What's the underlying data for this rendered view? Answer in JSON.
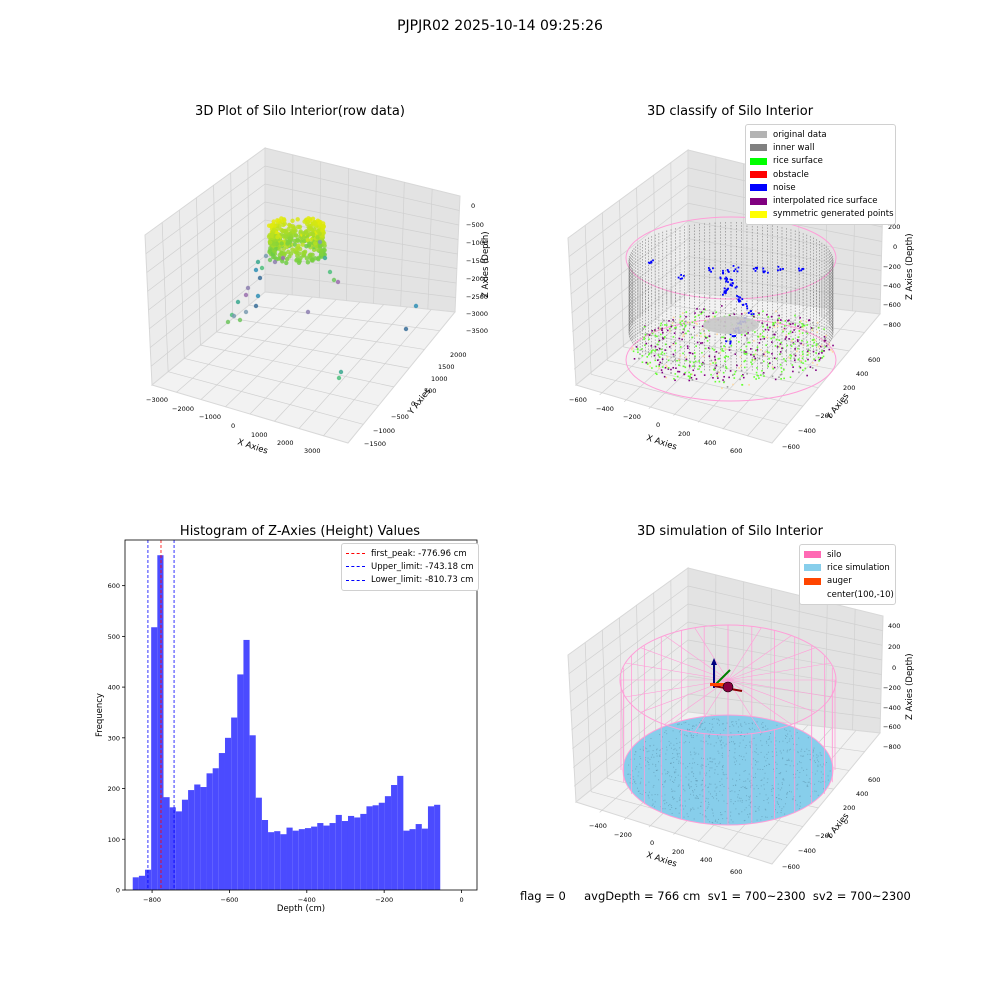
{
  "figure": {
    "suptitle": "PJPJR02 2025-10-14 09:25:26",
    "footer": "flag = 0     avgDepth = 766 cm  sv1 = 700~2300  sv2 = 700~2300"
  },
  "panels": {
    "raw": {
      "title": "3D Plot of Silo Interior(row data)",
      "xlabel": "X Axies",
      "ylabel": "Y Axies",
      "zlabel": "Z Axies (Depth)",
      "xticks": [
        "−3000",
        "−2000",
        "−1000",
        "0",
        "1000",
        "2000",
        "3000"
      ],
      "yticks": [
        "−1500",
        "−1000",
        "−500",
        "0",
        "500",
        "1000",
        "1500",
        "2000"
      ],
      "zticks": [
        "0",
        "−500",
        "−1000",
        "−1500",
        "−2000",
        "−2500",
        "−3000",
        "−3500"
      ]
    },
    "classify": {
      "title": "3D classify of Silo Interior",
      "xlabel": "X Axies",
      "ylabel": "Y Axies",
      "zlabel": "Z Axies (Depth)",
      "xticks": [
        "−600",
        "−400",
        "−200",
        "0",
        "200",
        "400",
        "600"
      ],
      "yticks": [
        "−600",
        "−400",
        "−200",
        "0",
        "200",
        "400",
        "600"
      ],
      "zticks": [
        "200",
        "0",
        "−200",
        "−400",
        "−600",
        "−800"
      ],
      "legend": [
        {
          "label": "original data",
          "color": "#b3b3b3"
        },
        {
          "label": "inner wall",
          "color": "#808080"
        },
        {
          "label": "rice surface",
          "color": "#00ff00"
        },
        {
          "label": "obstacle",
          "color": "#ff0000"
        },
        {
          "label": "noise",
          "color": "#0000ff"
        },
        {
          "label": "interpolated rice surface",
          "color": "#800080"
        },
        {
          "label": "symmetric generated points",
          "color": "#ffff00"
        }
      ]
    },
    "histogram": {
      "title": "Histogram of Z-Axies (Height) Values",
      "xlabel": "Depth (cm)",
      "ylabel": "Frequency",
      "legend": [
        {
          "label": "first_peak: -776.96 cm",
          "color": "#ff0000"
        },
        {
          "label": "Upper_limit: -743.18 cm",
          "color": "#0000ff"
        },
        {
          "label": "Lower_limit: -810.73 cm",
          "color": "#0000ff"
        }
      ]
    },
    "simulation": {
      "title": "3D simulation of Silo Interior",
      "xlabel": "X Axies",
      "ylabel": "Y Axies",
      "zlabel": "Z Axies (Depth)",
      "xticks": [
        "−400",
        "−200",
        "0",
        "200",
        "400",
        "600"
      ],
      "yticks": [
        "−600",
        "−400",
        "−200",
        "0",
        "200",
        "400",
        "600"
      ],
      "zticks": [
        "400",
        "200",
        "0",
        "−200",
        "−400",
        "−600",
        "−800"
      ],
      "legend": [
        {
          "label": "silo",
          "color": "#ff69b4"
        },
        {
          "label": "rice simulation",
          "color": "#87ceeb"
        },
        {
          "label": "auger",
          "color": "#ff4500"
        },
        {
          "label": "center(100,-10)",
          "color": "#ffffff"
        }
      ]
    }
  },
  "chart_data": [
    {
      "type": "scatter",
      "title": "3D Plot of Silo Interior(row data)",
      "xlabel": "X Axies",
      "ylabel": "Y Axies",
      "zlabel": "Z Axies (Depth)",
      "xlim": [
        -3000,
        3000
      ],
      "ylim": [
        -1500,
        2000
      ],
      "zlim": [
        -3500,
        0
      ],
      "grid": true
    },
    {
      "type": "scatter",
      "title": "3D classify of Silo Interior",
      "xlim": [
        -600,
        600
      ],
      "ylim": [
        -600,
        600
      ],
      "zlim": [
        -800,
        200
      ],
      "series": [
        {
          "name": "original data"
        },
        {
          "name": "inner wall"
        },
        {
          "name": "rice surface"
        },
        {
          "name": "obstacle"
        },
        {
          "name": "noise"
        },
        {
          "name": "interpolated rice surface"
        },
        {
          "name": "symmetric generated points"
        }
      ],
      "legend_position": "upper right",
      "grid": true
    },
    {
      "type": "bar",
      "title": "Histogram of Z-Axies (Height) Values",
      "xlabel": "Depth (cm)",
      "ylabel": "Frequency",
      "xlim": [
        -870,
        40
      ],
      "ylim": [
        0,
        690
      ],
      "xticks": [
        -800,
        -600,
        -400,
        -200,
        0
      ],
      "yticks": [
        0,
        100,
        200,
        300,
        400,
        500,
        600
      ],
      "bin_start": -850,
      "bin_width": 15.9,
      "values": [
        25,
        28,
        40,
        518,
        660,
        183,
        163,
        155,
        178,
        197,
        208,
        203,
        230,
        240,
        270,
        300,
        340,
        425,
        493,
        305,
        182,
        138,
        114,
        116,
        110,
        123,
        117,
        120,
        122,
        125,
        132,
        127,
        132,
        148,
        136,
        146,
        143,
        150,
        165,
        167,
        172,
        185,
        207,
        225,
        117,
        120,
        130,
        121,
        165,
        168
      ],
      "vlines": [
        {
          "x": -776.96,
          "color": "#ff0000",
          "label": "first_peak: -776.96 cm"
        },
        {
          "x": -743.18,
          "color": "#0000ff",
          "label": "Upper_limit: -743.18 cm"
        },
        {
          "x": -810.73,
          "color": "#0000ff",
          "label": "Lower_limit: -810.73 cm"
        }
      ],
      "legend_position": "upper right",
      "bar_color": "#4b4bff"
    },
    {
      "type": "scatter",
      "title": "3D simulation of Silo Interior",
      "xlim": [
        -500,
        700
      ],
      "ylim": [
        -600,
        600
      ],
      "zlim": [
        -800,
        400
      ],
      "series": [
        {
          "name": "silo"
        },
        {
          "name": "rice simulation"
        },
        {
          "name": "auger"
        },
        {
          "name": "center(100,-10)"
        }
      ],
      "legend_position": "upper right",
      "grid": true
    }
  ]
}
